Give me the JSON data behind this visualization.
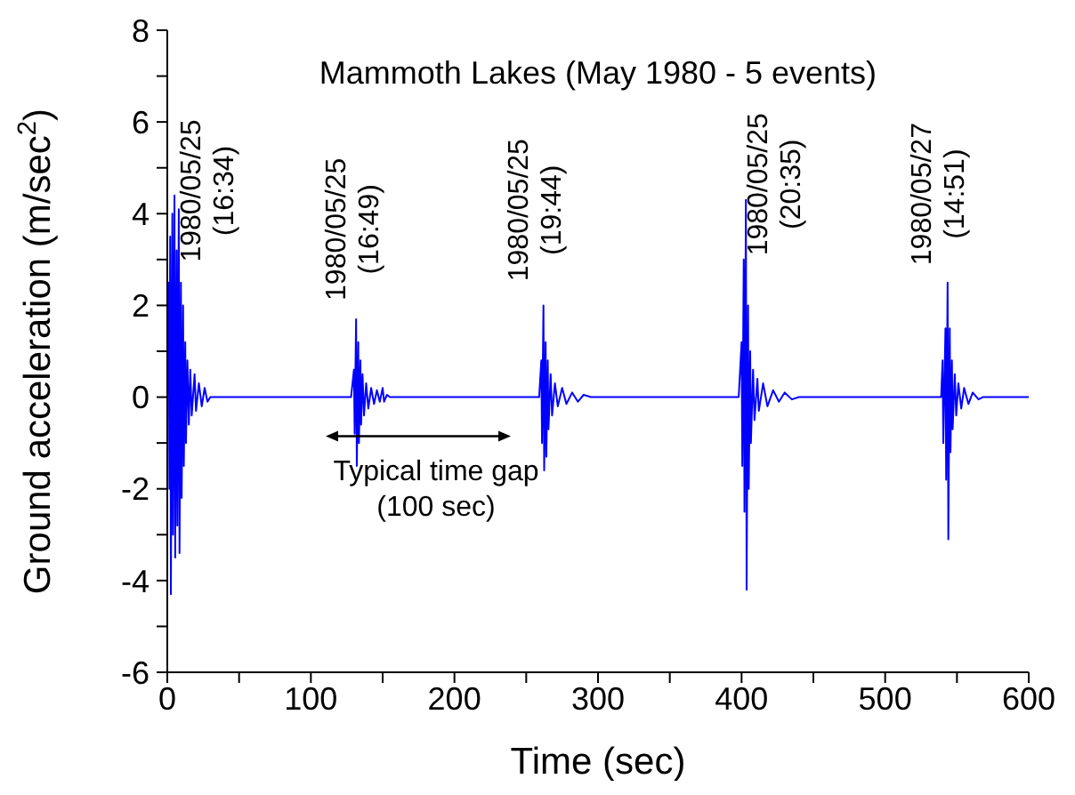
{
  "chart_data": {
    "type": "line",
    "title": "Mammoth Lakes (May 1980 - 5 events)",
    "xlabel": "Time (sec)",
    "ylabel": "Ground acceleration (m/sec$^{2}$)",
    "x": [
      0,
      1,
      1.5,
      2,
      2.5,
      3.5,
      4,
      5,
      5.5,
      6.5,
      7,
      8,
      8.5,
      9.5,
      10,
      11,
      11.5,
      12.5,
      13,
      14,
      15,
      16,
      17,
      19,
      20,
      22,
      24,
      26,
      28,
      30,
      128,
      130,
      130.5,
      131.5,
      132,
      133,
      133.5,
      134.5,
      135,
      136,
      137,
      138.5,
      140,
      142,
      144,
      146,
      148,
      150,
      151,
      153,
      155,
      259,
      260.5,
      261,
      262,
      262.5,
      263.5,
      264,
      265,
      265.5,
      267,
      268,
      270,
      272,
      275,
      278,
      282,
      286,
      290,
      295,
      398,
      400,
      400.5,
      401.5,
      402,
      403,
      403.5,
      404.5,
      405,
      406,
      406.5,
      408,
      409,
      411,
      412,
      415,
      418,
      422,
      426,
      430,
      435,
      440,
      539,
      540,
      540.5,
      542,
      542.5,
      543.5,
      544,
      545,
      545.5,
      546.5,
      547,
      548.5,
      549.5,
      551,
      553,
      555,
      558,
      561,
      565,
      568,
      600
    ],
    "series": [
      {
        "color": "#0000ff",
        "values": [
          0,
          2.5,
          -2,
          3.5,
          -4.3,
          4.0,
          -3.0,
          4.4,
          -3.5,
          3.2,
          -2.8,
          4.1,
          -3.4,
          2.5,
          -2.2,
          2.0,
          -1.5,
          1.2,
          -1.0,
          0.8,
          -0.6,
          0.6,
          -0.4,
          0.5,
          -0.3,
          0.3,
          -0.2,
          0.2,
          -0.1,
          0,
          0,
          0.6,
          -0.8,
          1.7,
          -1.5,
          1.2,
          -1.0,
          0.8,
          -0.6,
          0.5,
          -0.4,
          0.3,
          -0.25,
          0.2,
          -0.15,
          0.15,
          -0.1,
          0.2,
          -0.1,
          0.05,
          0,
          0,
          0.8,
          -1.0,
          2.0,
          -1.6,
          1.2,
          -1.3,
          0.8,
          -0.7,
          0.5,
          -0.4,
          0.3,
          -0.2,
          0.2,
          -0.15,
          0.1,
          -0.1,
          0.05,
          0,
          0,
          1.2,
          -1.5,
          3.0,
          -2.5,
          4.3,
          -4.2,
          2.0,
          -2.0,
          1.0,
          -1.0,
          0.6,
          -0.5,
          0.4,
          -0.3,
          0.3,
          -0.2,
          0.15,
          -0.1,
          0.1,
          -0.05,
          0,
          0,
          0.8,
          -1.0,
          1.5,
          -1.8,
          2.5,
          -3.1,
          1.5,
          -1.2,
          0.8,
          -0.7,
          0.5,
          -0.4,
          0.3,
          -0.25,
          0.2,
          -0.15,
          0.1,
          -0.05,
          0,
          0
        ]
      }
    ],
    "xlim": [
      0,
      600
    ],
    "xticks": [
      0,
      {
        "value": 50,
        "label": null
      },
      100,
      {
        "value": 150,
        "label": null
      },
      200,
      {
        "value": 250,
        "label": null
      },
      300,
      {
        "value": 350,
        "label": null
      },
      400,
      {
        "value": 450,
        "label": null
      },
      500,
      {
        "value": 550,
        "label": null
      },
      600
    ],
    "ylim": [
      -6,
      8
    ],
    "yticks": [
      -6,
      {
        "value": -5,
        "label": null
      },
      -4,
      {
        "value": -3,
        "label": null
      },
      -2,
      {
        "value": -1,
        "label": null
      },
      0,
      {
        "value": 1,
        "label": null
      },
      2,
      {
        "value": 3,
        "label": null
      },
      4,
      {
        "value": 5,
        "label": null
      },
      6,
      {
        "value": 7,
        "label": null
      },
      8
    ],
    "marker": "none",
    "line_style": "solid",
    "annotations": [
      "1980/05/25\n(16:34)",
      "1980/05/25\n(16:49)",
      "1980/05/25\n(19:44)",
      "1980/05/25\n(20:35)",
      "1980/05/27\n(14:51)",
      "Typical time gap\n(100 sec)"
    ]
  }
}
